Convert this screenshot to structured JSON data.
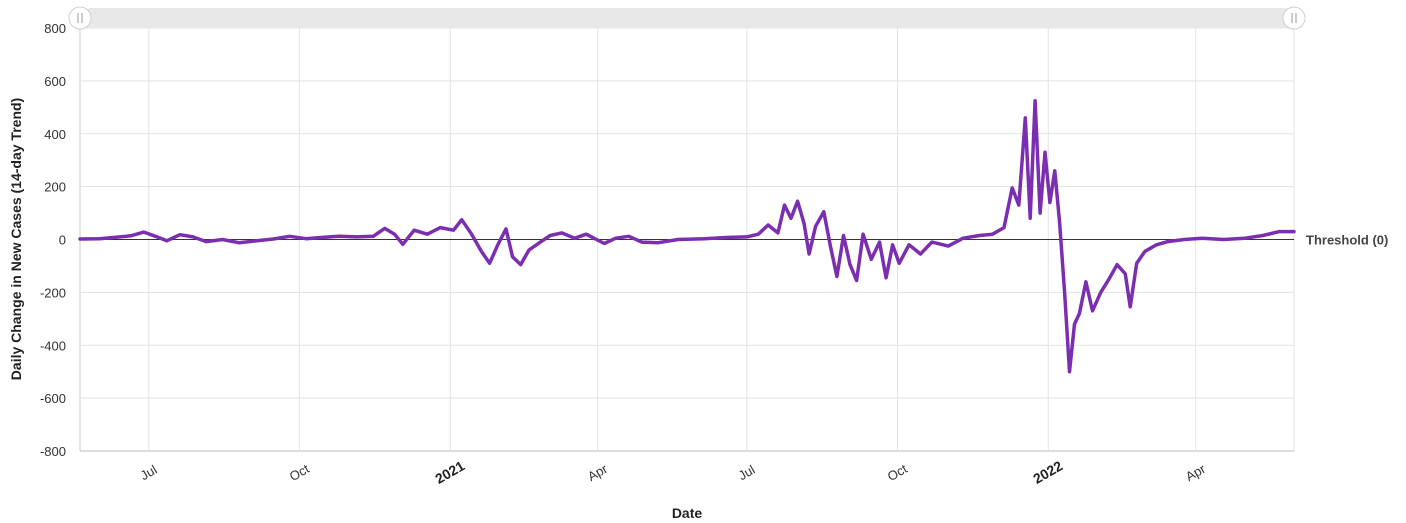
{
  "chart_data": {
    "type": "line",
    "xlabel": "Date",
    "ylabel": "Daily Change in New Cases (14-day Trend)",
    "ylim": [
      -800,
      800
    ],
    "yticks": [
      -800,
      -600,
      -400,
      -200,
      0,
      200,
      400,
      600,
      800
    ],
    "xlim": [
      "2020-05-20",
      "2022-05-31"
    ],
    "xticks": [
      {
        "date": "2020-07-01",
        "label": "Jul",
        "bold": false
      },
      {
        "date": "2020-10-01",
        "label": "Oct",
        "bold": false
      },
      {
        "date": "2021-01-01",
        "label": "2021",
        "bold": true
      },
      {
        "date": "2021-04-01",
        "label": "Apr",
        "bold": false
      },
      {
        "date": "2021-07-01",
        "label": "Jul",
        "bold": false
      },
      {
        "date": "2021-10-01",
        "label": "Oct",
        "bold": false
      },
      {
        "date": "2022-01-01",
        "label": "2022",
        "bold": true
      },
      {
        "date": "2022-04-01",
        "label": "Apr",
        "bold": false
      }
    ],
    "grid": true,
    "threshold": {
      "value": 0,
      "label": "Threshold (0)",
      "color": "#333333"
    },
    "series": [
      {
        "color": "#7b2fb0",
        "points": [
          [
            "2020-05-20",
            2
          ],
          [
            "2020-06-01",
            3
          ],
          [
            "2020-06-10",
            8
          ],
          [
            "2020-06-20",
            14
          ],
          [
            "2020-06-28",
            28
          ],
          [
            "2020-07-05",
            12
          ],
          [
            "2020-07-12",
            -5
          ],
          [
            "2020-07-20",
            18
          ],
          [
            "2020-07-28",
            10
          ],
          [
            "2020-08-05",
            -8
          ],
          [
            "2020-08-15",
            0
          ],
          [
            "2020-08-25",
            -12
          ],
          [
            "2020-09-05",
            -5
          ],
          [
            "2020-09-15",
            2
          ],
          [
            "2020-09-25",
            12
          ],
          [
            "2020-10-05",
            3
          ],
          [
            "2020-10-15",
            8
          ],
          [
            "2020-10-25",
            12
          ],
          [
            "2020-11-05",
            10
          ],
          [
            "2020-11-15",
            12
          ],
          [
            "2020-11-22",
            42
          ],
          [
            "2020-11-28",
            20
          ],
          [
            "2020-12-03",
            -18
          ],
          [
            "2020-12-10",
            35
          ],
          [
            "2020-12-18",
            20
          ],
          [
            "2020-12-26",
            45
          ],
          [
            "2021-01-03",
            35
          ],
          [
            "2021-01-08",
            75
          ],
          [
            "2021-01-14",
            20
          ],
          [
            "2021-01-20",
            -45
          ],
          [
            "2021-01-25",
            -90
          ],
          [
            "2021-01-30",
            -20
          ],
          [
            "2021-02-04",
            40
          ],
          [
            "2021-02-08",
            -65
          ],
          [
            "2021-02-13",
            -95
          ],
          [
            "2021-02-18",
            -40
          ],
          [
            "2021-02-25",
            -10
          ],
          [
            "2021-03-03",
            15
          ],
          [
            "2021-03-10",
            25
          ],
          [
            "2021-03-18",
            5
          ],
          [
            "2021-03-25",
            20
          ],
          [
            "2021-04-05",
            -15
          ],
          [
            "2021-04-12",
            5
          ],
          [
            "2021-04-20",
            12
          ],
          [
            "2021-04-28",
            -10
          ],
          [
            "2021-05-08",
            -12
          ],
          [
            "2021-05-20",
            0
          ],
          [
            "2021-06-05",
            3
          ],
          [
            "2021-06-20",
            8
          ],
          [
            "2021-07-01",
            10
          ],
          [
            "2021-07-08",
            20
          ],
          [
            "2021-07-14",
            55
          ],
          [
            "2021-07-20",
            25
          ],
          [
            "2021-07-24",
            130
          ],
          [
            "2021-07-28",
            80
          ],
          [
            "2021-08-01",
            145
          ],
          [
            "2021-08-05",
            60
          ],
          [
            "2021-08-08",
            -55
          ],
          [
            "2021-08-12",
            50
          ],
          [
            "2021-08-17",
            105
          ],
          [
            "2021-08-21",
            -25
          ],
          [
            "2021-08-25",
            -140
          ],
          [
            "2021-08-29",
            15
          ],
          [
            "2021-09-02",
            -95
          ],
          [
            "2021-09-06",
            -155
          ],
          [
            "2021-09-10",
            20
          ],
          [
            "2021-09-15",
            -75
          ],
          [
            "2021-09-20",
            -10
          ],
          [
            "2021-09-24",
            -145
          ],
          [
            "2021-09-28",
            -20
          ],
          [
            "2021-10-02",
            -90
          ],
          [
            "2021-10-08",
            -20
          ],
          [
            "2021-10-15",
            -55
          ],
          [
            "2021-10-22",
            -10
          ],
          [
            "2021-11-01",
            -25
          ],
          [
            "2021-11-10",
            5
          ],
          [
            "2021-11-20",
            15
          ],
          [
            "2021-11-28",
            20
          ],
          [
            "2021-12-05",
            45
          ],
          [
            "2021-12-10",
            195
          ],
          [
            "2021-12-14",
            130
          ],
          [
            "2021-12-18",
            460
          ],
          [
            "2021-12-21",
            80
          ],
          [
            "2021-12-24",
            525
          ],
          [
            "2021-12-27",
            100
          ],
          [
            "2021-12-30",
            330
          ],
          [
            "2022-01-02",
            140
          ],
          [
            "2022-01-05",
            260
          ],
          [
            "2022-01-08",
            60
          ],
          [
            "2022-01-11",
            -200
          ],
          [
            "2022-01-14",
            -500
          ],
          [
            "2022-01-17",
            -320
          ],
          [
            "2022-01-20",
            -280
          ],
          [
            "2022-01-24",
            -160
          ],
          [
            "2022-01-28",
            -270
          ],
          [
            "2022-02-02",
            -200
          ],
          [
            "2022-02-07",
            -150
          ],
          [
            "2022-02-12",
            -95
          ],
          [
            "2022-02-17",
            -130
          ],
          [
            "2022-02-20",
            -255
          ],
          [
            "2022-02-24",
            -90
          ],
          [
            "2022-03-01",
            -45
          ],
          [
            "2022-03-08",
            -20
          ],
          [
            "2022-03-15",
            -8
          ],
          [
            "2022-03-25",
            0
          ],
          [
            "2022-04-05",
            5
          ],
          [
            "2022-04-18",
            0
          ],
          [
            "2022-05-01",
            5
          ],
          [
            "2022-05-12",
            15
          ],
          [
            "2022-05-22",
            30
          ],
          [
            "2022-05-31",
            30
          ]
        ]
      }
    ]
  },
  "colors": {
    "line": "#7b2fb0",
    "grid": "#e3e3e3",
    "scrollbar": "#e8e8e8"
  }
}
